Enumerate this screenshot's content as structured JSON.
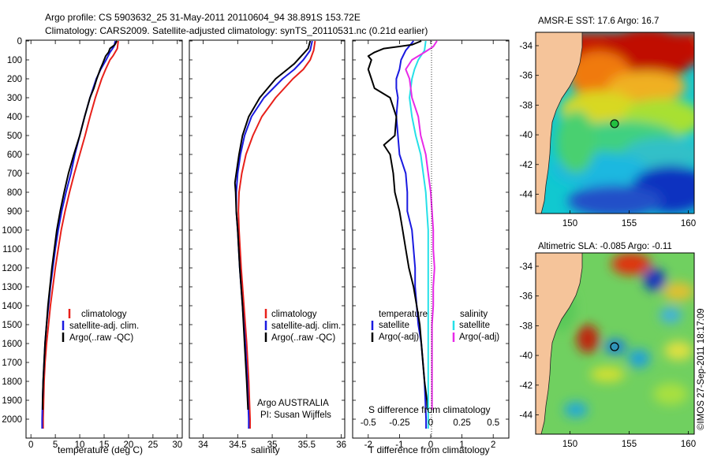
{
  "header": {
    "line1": "Argo profile: CS 5903632_25 31-May-2011 20110604_94 38.891S 153.72E",
    "line2": "Climatology: CARS2009. Satellite-adjusted climatology: synTS_20110531.nc (0.21d earlier)"
  },
  "depth_axis": {
    "ticks": [
      0,
      100,
      200,
      300,
      400,
      500,
      600,
      700,
      800,
      900,
      1000,
      1100,
      1200,
      1300,
      1400,
      1500,
      1600,
      1700,
      1800,
      1900,
      2000
    ]
  },
  "colors": {
    "climatology": "#e8201a",
    "satellite": "#1a1ae0",
    "argo": "#000000",
    "sal_satellite": "#25e0e8",
    "sal_argo": "#e82ae8",
    "land": "#f5c49a"
  },
  "chart_data": [
    {
      "type": "line",
      "panel": "temperature",
      "xlabel": "temperature (deg C)",
      "xlim": [
        -1,
        31
      ],
      "ylim": [
        0,
        2050
      ],
      "xticks": [
        0,
        5,
        10,
        15,
        20,
        25,
        30
      ],
      "legend": [
        "climatology",
        "satellite-adj. clim.",
        "Argo(..raw -QC)"
      ],
      "series": [
        {
          "name": "climatology",
          "depth": [
            0,
            40,
            80,
            100,
            150,
            200,
            300,
            400,
            500,
            600,
            700,
            800,
            900,
            1000,
            1100,
            1200,
            1300,
            1400,
            1500,
            1600,
            1700,
            1800,
            1900,
            2000,
            2050
          ],
          "values": [
            17.9,
            17.7,
            16.8,
            16.2,
            15.3,
            14.5,
            13.2,
            12.1,
            11.1,
            10.0,
            8.9,
            7.9,
            7.0,
            6.2,
            5.6,
            5.0,
            4.5,
            4.0,
            3.6,
            3.2,
            2.9,
            2.7,
            2.6,
            2.5,
            2.5
          ]
        },
        {
          "name": "satellite-adj. clim.",
          "depth": [
            0,
            30,
            60,
            100,
            150,
            200,
            300,
            400,
            500,
            600,
            700,
            800,
            900,
            1000,
            1100,
            1200,
            1300,
            1400,
            1500,
            1600,
            1700,
            1800,
            1900,
            2000,
            2050
          ],
          "values": [
            17.3,
            17.0,
            16.2,
            15.4,
            14.3,
            13.4,
            12.1,
            11.0,
            10.0,
            9.0,
            8.2,
            7.2,
            6.3,
            5.6,
            5.0,
            4.5,
            4.0,
            3.6,
            3.2,
            2.9,
            2.7,
            2.5,
            2.4,
            2.3,
            2.3
          ]
        },
        {
          "name": "Argo(..raw -QC)",
          "depth": [
            0,
            20,
            40,
            60,
            80,
            100,
            120,
            150,
            200,
            250,
            300,
            400,
            500,
            600,
            700,
            800,
            900,
            1000,
            1100,
            1200,
            1300,
            1400,
            1500,
            1600,
            1700,
            1800,
            1900,
            1950
          ],
          "values": [
            17.6,
            17.2,
            16.2,
            15.9,
            15.3,
            15.0,
            14.7,
            14.2,
            13.5,
            12.9,
            12.1,
            11.0,
            10.0,
            8.8,
            7.7,
            6.8,
            6.0,
            5.3,
            4.8,
            4.3,
            3.9,
            3.5,
            3.2,
            2.9,
            2.7,
            2.5,
            2.4,
            2.4
          ]
        }
      ]
    },
    {
      "type": "line",
      "panel": "salinity",
      "xlabel": "salinity",
      "xlim": [
        33.8,
        36.05
      ],
      "ylim": [
        0,
        2050
      ],
      "xticks": [
        34,
        34.5,
        35,
        35.5,
        36
      ],
      "legend": [
        "climatology",
        "satellite-adj. clim.",
        "Argo(..raw -QC)"
      ],
      "series": [
        {
          "name": "climatology",
          "depth": [
            0,
            50,
            100,
            150,
            200,
            300,
            400,
            500,
            600,
            700,
            800,
            900,
            1000,
            1200,
            1400,
            1600,
            1800,
            2000,
            2050
          ],
          "values": [
            35.62,
            35.6,
            35.55,
            35.45,
            35.3,
            35.05,
            34.85,
            34.72,
            34.62,
            34.56,
            34.52,
            34.51,
            34.52,
            34.55,
            34.59,
            34.63,
            34.66,
            34.68,
            34.68
          ]
        },
        {
          "name": "satellite-adj. clim.",
          "depth": [
            0,
            50,
            100,
            150,
            200,
            300,
            400,
            500,
            600,
            700,
            800,
            900,
            1000,
            1200,
            1400,
            1600,
            1800,
            2000,
            2050
          ],
          "values": [
            35.58,
            35.55,
            35.45,
            35.32,
            35.15,
            34.88,
            34.7,
            34.6,
            34.54,
            34.5,
            34.48,
            34.48,
            34.5,
            34.53,
            34.57,
            34.61,
            34.64,
            34.66,
            34.66
          ]
        },
        {
          "name": "Argo(..raw -QC)",
          "depth": [
            0,
            40,
            80,
            120,
            150,
            200,
            300,
            400,
            500,
            600,
            700,
            750,
            800,
            900,
            1000,
            1200,
            1400,
            1600,
            1800,
            1950
          ],
          "values": [
            35.55,
            35.52,
            35.42,
            35.32,
            35.22,
            35.05,
            34.82,
            34.66,
            34.57,
            34.52,
            34.48,
            34.46,
            34.47,
            34.48,
            34.5,
            34.53,
            34.57,
            34.6,
            34.63,
            34.65
          ]
        }
      ]
    },
    {
      "type": "line",
      "panel": "difference",
      "xlabel": "T difference from climatology",
      "xlabel_top": "S difference from climatology",
      "xlim": [
        -2.5,
        2.5
      ],
      "ylim": [
        0,
        2050
      ],
      "xticks_T": [
        -2,
        -1,
        0,
        1,
        2
      ],
      "xticks_S": [
        -0.5,
        -0.25,
        0,
        0.25,
        0.5
      ],
      "legend": {
        "temperature": {
          "title": "temperature",
          "items": [
            "satellite",
            "Argo(-adj)"
          ]
        },
        "salinity": {
          "title": "salinity",
          "items": [
            "satellite",
            "Argo(-adj)"
          ]
        }
      },
      "series": [
        {
          "name": "temperature satellite",
          "depth": [
            0,
            50,
            100,
            150,
            200,
            250,
            300,
            400,
            500,
            600,
            700,
            800,
            900,
            1000,
            1100,
            1200,
            1300,
            1400,
            1500,
            1600,
            1800,
            2000,
            2050
          ],
          "values": [
            -0.55,
            -0.8,
            -0.95,
            -1.0,
            -1.1,
            -1.1,
            -1.05,
            -1.1,
            -1.05,
            -1.0,
            -0.8,
            -0.75,
            -0.75,
            -0.6,
            -0.55,
            -0.5,
            -0.5,
            -0.45,
            -0.4,
            -0.3,
            -0.2,
            -0.15,
            -0.15
          ]
        },
        {
          "name": "temperature Argo(-adj)",
          "depth": [
            0,
            20,
            40,
            60,
            80,
            100,
            150,
            200,
            250,
            300,
            400,
            500,
            550,
            600,
            700,
            800,
            900,
            1000,
            1100,
            1200,
            1300,
            1400,
            1500,
            1600,
            1700,
            1800,
            1900,
            1950
          ],
          "values": [
            -0.3,
            -0.6,
            -1.5,
            -1.8,
            -2.0,
            -1.9,
            -2.0,
            -1.9,
            -1.8,
            -1.3,
            -1.1,
            -1.15,
            -1.5,
            -1.3,
            -1.2,
            -1.15,
            -1.0,
            -0.9,
            -0.8,
            -0.7,
            -0.55,
            -0.45,
            -0.35,
            -0.3,
            -0.25,
            -0.2,
            -0.12,
            -0.1
          ]
        },
        {
          "name": "salinity satellite",
          "depth": [
            0,
            50,
            100,
            150,
            200,
            300,
            400,
            500,
            600,
            700,
            800,
            900,
            1000,
            1200,
            1400,
            1600,
            1800,
            2000,
            2050
          ],
          "values": [
            -0.04,
            -0.05,
            -0.1,
            -0.13,
            -0.15,
            -0.17,
            -0.15,
            -0.12,
            -0.08,
            -0.06,
            -0.04,
            -0.03,
            -0.02,
            -0.02,
            -0.02,
            -0.02,
            -0.02,
            -0.02,
            -0.02
          ]
        },
        {
          "name": "salinity Argo(-adj)",
          "depth": [
            0,
            30,
            60,
            100,
            150,
            200,
            300,
            400,
            500,
            600,
            700,
            800,
            900,
            1000,
            1100,
            1200,
            1300,
            1400,
            1500,
            1600,
            1800,
            1950
          ],
          "values": [
            0.05,
            0.02,
            -0.05,
            -0.15,
            -0.2,
            -0.17,
            -0.15,
            -0.1,
            -0.08,
            -0.04,
            -0.02,
            0.0,
            0.01,
            0.02,
            0.02,
            0.03,
            0.02,
            0.02,
            0.01,
            0.01,
            0.01,
            0.01
          ]
        }
      ]
    },
    {
      "type": "heatmap",
      "panel": "map_sst",
      "title": "AMSR-E SST: 17.6 Argo: 16.7",
      "xticks": [
        150,
        155,
        160
      ],
      "yticks": [
        -34,
        -36,
        -38,
        -40,
        -42,
        -44
      ],
      "marker": {
        "lon": 153.72,
        "lat": -38.891
      }
    },
    {
      "type": "heatmap",
      "panel": "map_sla",
      "title": "Altimetric SLA: -0.085 Argo: -0.11",
      "xticks": [
        150,
        155,
        160
      ],
      "yticks": [
        -34,
        -36,
        -38,
        -40,
        -42,
        -44
      ],
      "marker": {
        "lon": 153.72,
        "lat": -38.891
      }
    }
  ],
  "credits": {
    "agency": "Argo AUSTRALIA",
    "pi": "PI: Susan Wijffels",
    "stamp": "©IMOS 27-Sep-2011 18:17:09"
  }
}
